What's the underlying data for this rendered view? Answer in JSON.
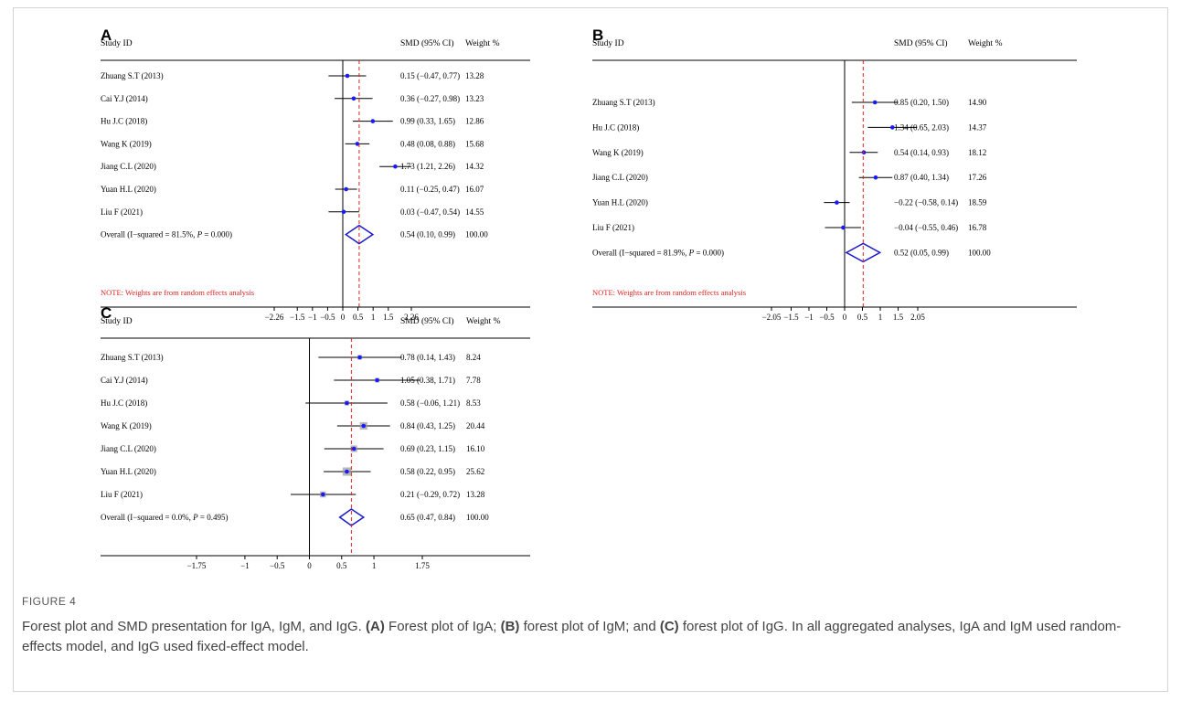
{
  "figure_label": "FIGURE 4",
  "caption": {
    "p1": "Forest plot and SMD presentation for IgA, IgM, and IgG. ",
    "a": "(A)",
    "p2": " Forest plot of IgA; ",
    "b": "(B)",
    "p3": " forest plot of IgM; and ",
    "c": "(C)",
    "p4": " forest plot of IgG. In all aggregated analyses, IgA and IgM used random-effects model, and IgG used fixed-effect model."
  },
  "colors": {
    "point": "#1a1aff",
    "diamond": "#1a1acc",
    "dashed": "#e02020",
    "note": "#e02020",
    "ink": "#000000"
  },
  "chart_data": [
    {
      "type": "forest",
      "panel_label": "A",
      "col_headers": {
        "study": "Study  ID",
        "smd": "SMD (95% CI)",
        "weight": "Weight  %"
      },
      "studies": [
        {
          "name": "Zhuang S.T (2013)",
          "smd": 0.15,
          "lo": -0.47,
          "hi": 0.77,
          "ci_text": "0.15 (−0.47, 0.77)",
          "weight": "13.28"
        },
        {
          "name": "Cai Y.J (2014)",
          "smd": 0.36,
          "lo": -0.27,
          "hi": 0.98,
          "ci_text": "0.36 (−0.27, 0.98)",
          "weight": "13.23"
        },
        {
          "name": "Hu J.C (2018)",
          "smd": 0.99,
          "lo": 0.33,
          "hi": 1.65,
          "ci_text": "0.99 (0.33, 1.65)",
          "weight": "12.86"
        },
        {
          "name": "Wang K (2019)",
          "smd": 0.48,
          "lo": 0.08,
          "hi": 0.88,
          "ci_text": "0.48 (0.08, 0.88)",
          "weight": "15.68"
        },
        {
          "name": "Jiang C.L (2020)",
          "smd": 1.73,
          "lo": 1.21,
          "hi": 2.26,
          "ci_text": "1.73 (1.21, 2.26)",
          "weight": "14.32"
        },
        {
          "name": "Yuan H.L (2020)",
          "smd": 0.11,
          "lo": -0.25,
          "hi": 0.47,
          "ci_text": "0.11 (−0.25, 0.47)",
          "weight": "16.07"
        },
        {
          "name": "Liu F (2021)",
          "smd": 0.03,
          "lo": -0.47,
          "hi": 0.54,
          "ci_text": "0.03 (−0.47, 0.54)",
          "weight": "14.55"
        }
      ],
      "overall": {
        "label_pre": "Overall  (I−squared = 81.5%, ",
        "label_p": "P",
        "label_post": " = 0.000)",
        "smd": 0.54,
        "lo": 0.1,
        "hi": 0.99,
        "ci_text": "0.54 (0.10, 0.99)",
        "weight": "100.00"
      },
      "note": "NOTE: Weights are from random effects analysis",
      "ticks": [
        -2.26,
        -1.5,
        -1,
        -0.5,
        0,
        0.5,
        1,
        1.5,
        2.26
      ],
      "tick_labels": [
        "−2.26",
        "−1.5",
        "−1",
        "−0.5",
        "0",
        "0.5",
        "1",
        "1.5",
        "2.26"
      ],
      "xlim": [
        -2.26,
        2.26
      ]
    },
    {
      "type": "forest",
      "panel_label": "B",
      "col_headers": {
        "study": "Study  ID",
        "smd": "SMD (95% CI)",
        "weight": "Weight  %"
      },
      "studies": [
        {
          "name": "Zhuang S.T (2013)",
          "smd": 0.85,
          "lo": 0.2,
          "hi": 1.5,
          "ci_text": "0.85 (0.20, 1.50)",
          "weight": "14.90"
        },
        {
          "name": "Hu J.C (2018)",
          "smd": 1.34,
          "lo": 0.65,
          "hi": 2.03,
          "ci_text": "1.34 (0.65, 2.03)",
          "weight": "14.37"
        },
        {
          "name": "Wang K (2019)",
          "smd": 0.54,
          "lo": 0.14,
          "hi": 0.93,
          "ci_text": "0.54 (0.14, 0.93)",
          "weight": "18.12"
        },
        {
          "name": "Jiang C.L (2020)",
          "smd": 0.87,
          "lo": 0.4,
          "hi": 1.34,
          "ci_text": "0.87 (0.40, 1.34)",
          "weight": "17.26"
        },
        {
          "name": "Yuan H.L (2020)",
          "smd": -0.22,
          "lo": -0.58,
          "hi": 0.14,
          "ci_text": "−0.22 (−0.58, 0.14)",
          "weight": "18.59"
        },
        {
          "name": "Liu F (2021)",
          "smd": -0.04,
          "lo": -0.55,
          "hi": 0.46,
          "ci_text": "−0.04 (−0.55, 0.46)",
          "weight": "16.78"
        }
      ],
      "overall": {
        "label_pre": "Overall  (I−squared = 81.9%, ",
        "label_p": "P",
        "label_post": " = 0.000)",
        "smd": 0.52,
        "lo": 0.05,
        "hi": 0.99,
        "ci_text": "0.52 (0.05, 0.99)",
        "weight": "100.00"
      },
      "note": "NOTE: Weights are from random effects analysis",
      "ticks": [
        -2.05,
        -1.5,
        -1,
        -0.5,
        0,
        0.5,
        1,
        1.5,
        2.05
      ],
      "tick_labels": [
        "−2.05",
        "−1.5",
        "−1",
        "−0.5",
        "0",
        "0.5",
        "1",
        "1.5",
        "2.05"
      ],
      "xlim": [
        -2.05,
        2.05
      ]
    },
    {
      "type": "forest",
      "panel_label": "C",
      "col_headers": {
        "study": "Study  ID",
        "smd": "SMD (95% CI)",
        "weight": "Weight  %"
      },
      "studies": [
        {
          "name": "Zhuang S.T (2013)",
          "smd": 0.78,
          "lo": 0.14,
          "hi": 1.43,
          "ci_text": "0.78 (0.14, 1.43)",
          "weight": "8.24"
        },
        {
          "name": "Cai Y.J (2014)",
          "smd": 1.05,
          "lo": 0.38,
          "hi": 1.71,
          "ci_text": "1.05 (0.38, 1.71)",
          "weight": "7.78"
        },
        {
          "name": "Hu J.C (2018)",
          "smd": 0.58,
          "lo": -0.06,
          "hi": 1.21,
          "ci_text": "0.58 (−0.06, 1.21)",
          "weight": "8.53"
        },
        {
          "name": "Wang K (2019)",
          "smd": 0.84,
          "lo": 0.43,
          "hi": 1.25,
          "ci_text": "0.84 (0.43, 1.25)",
          "weight": "20.44"
        },
        {
          "name": "Jiang C.L (2020)",
          "smd": 0.69,
          "lo": 0.23,
          "hi": 1.15,
          "ci_text": "0.69 (0.23, 1.15)",
          "weight": "16.10"
        },
        {
          "name": "Yuan H.L (2020)",
          "smd": 0.58,
          "lo": 0.22,
          "hi": 0.95,
          "ci_text": "0.58 (0.22, 0.95)",
          "weight": "25.62"
        },
        {
          "name": "Liu F (2021)",
          "smd": 0.21,
          "lo": -0.29,
          "hi": 0.72,
          "ci_text": "0.21 (−0.29, 0.72)",
          "weight": "13.28"
        }
      ],
      "overall": {
        "label_pre": "Overall  (I−squared = 0.0%, ",
        "label_p": "P",
        "label_post": " = 0.495)",
        "smd": 0.65,
        "lo": 0.47,
        "hi": 0.84,
        "ci_text": "0.65 (0.47, 0.84)",
        "weight": "100.00"
      },
      "note": "",
      "ticks": [
        -1.75,
        -1,
        -0.5,
        0,
        0.5,
        1,
        1.75
      ],
      "tick_labels": [
        "−1.75",
        "−1",
        "−0.5",
        "0",
        "0.5",
        "1",
        "1.75"
      ],
      "xlim": [
        -1.75,
        1.75
      ]
    }
  ]
}
